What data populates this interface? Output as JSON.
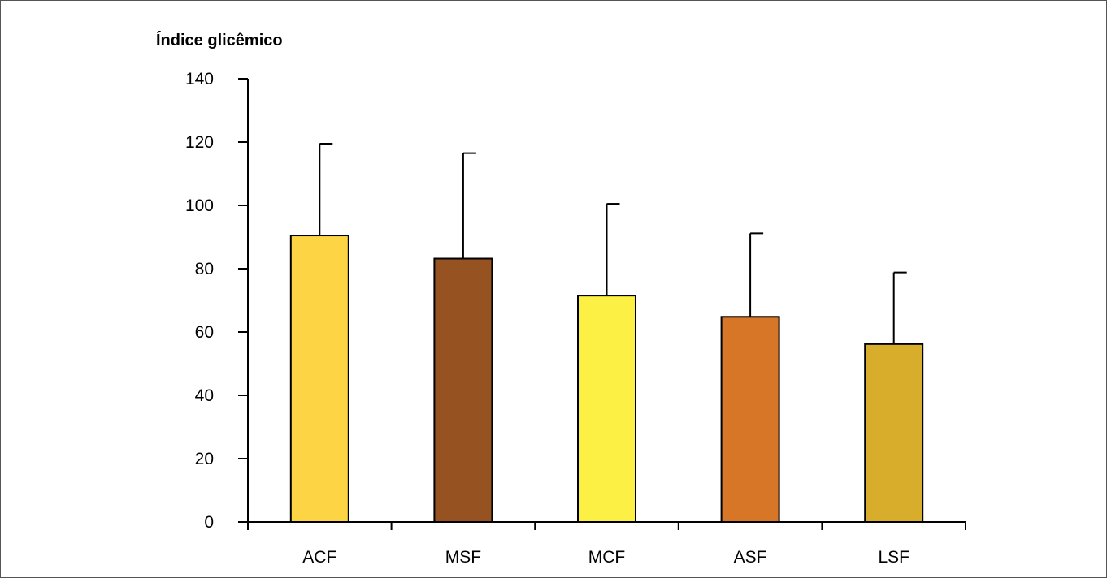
{
  "chart_data": {
    "type": "bar",
    "title": "",
    "ylabel": "Índice glicêmico",
    "xlabel": "",
    "categories": [
      "ACF",
      "MSF",
      "MCF",
      "ASF",
      "LSF"
    ],
    "values": [
      90.5,
      83.2,
      71.5,
      64.8,
      56.2
    ],
    "error_upper": [
      119.5,
      116.5,
      100.5,
      91.2,
      78.8
    ],
    "colors": [
      "#FDD444",
      "#965321",
      "#FBF043",
      "#D67626",
      "#D8AD2B"
    ],
    "ylim": [
      0,
      140
    ],
    "yticks": [
      0,
      20,
      40,
      60,
      80,
      100,
      120,
      140
    ],
    "grid": false,
    "legend": "none"
  }
}
